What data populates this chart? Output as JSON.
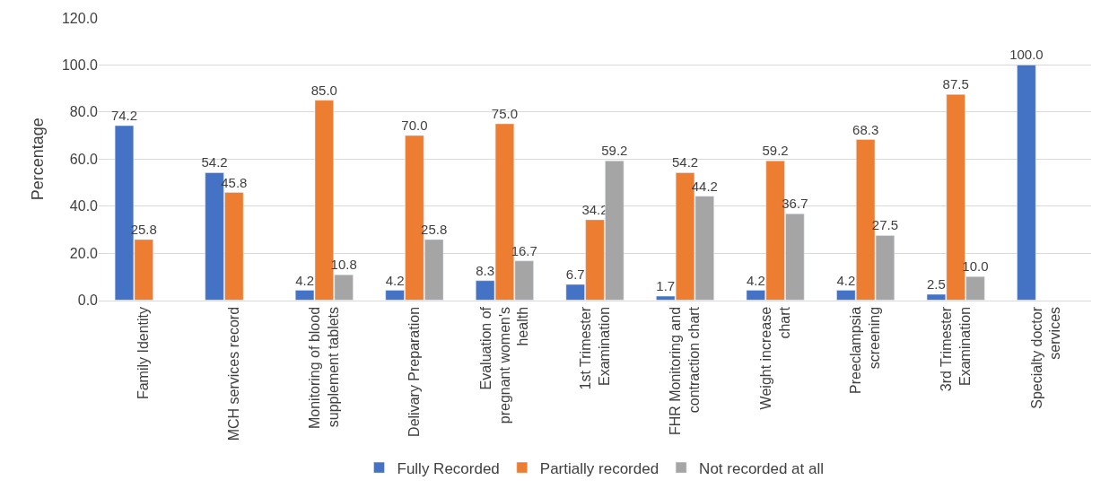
{
  "chart_data": {
    "type": "bar",
    "ylabel": "Percentage",
    "categories": [
      "Family Identity",
      "MCH services record",
      "Monitoring of blood supplement tablets",
      "Delivary Preparation",
      "Evaluation of pregnant women's health",
      "1st Trimester Examination",
      "FHR Monitoring and contraction chart",
      "Weight increase chart",
      "Preeclampsia screening",
      "3rd Trimester Examination",
      "Specialty doctor services"
    ],
    "series": [
      {
        "name": "Fully Recorded",
        "color": "#4472c4",
        "values": [
          74.2,
          54.2,
          4.2,
          4.2,
          8.3,
          6.7,
          1.7,
          4.2,
          4.2,
          2.5,
          100.0
        ],
        "value_labels": [
          "74.2",
          "54.2",
          "4.2",
          "4.2",
          "8.3",
          "6.7",
          "1.7",
          "4.2",
          "4.2",
          "2.5",
          "100.0"
        ]
      },
      {
        "name": "Partially recorded",
        "color": "#ed7d31",
        "values": [
          25.8,
          45.8,
          85.0,
          70.0,
          75.0,
          34.2,
          54.2,
          59.2,
          68.3,
          87.5,
          null
        ],
        "value_labels": [
          "25.8",
          "45.8",
          "85.0",
          "70.0",
          "75.0",
          "34.2",
          "54.2",
          "59.2",
          "68.3",
          "87.5",
          null
        ]
      },
      {
        "name": "Not recorded at all",
        "color": "#a5a5a5",
        "values": [
          null,
          null,
          10.8,
          25.8,
          16.7,
          59.2,
          44.2,
          36.7,
          27.5,
          10.0,
          null
        ],
        "value_labels": [
          null,
          null,
          "10.8",
          "25.8",
          "16.7",
          "59.2",
          "44.2",
          "36.7",
          "27.5",
          "10.0",
          null
        ]
      }
    ],
    "ylim": [
      0,
      120
    ],
    "yticks": [
      {
        "value": 0,
        "label": "0.0"
      },
      {
        "value": 20,
        "label": "20.0"
      },
      {
        "value": 40,
        "label": "40.0"
      },
      {
        "value": 60,
        "label": "60.0"
      },
      {
        "value": 80,
        "label": "80.0"
      },
      {
        "value": 100,
        "label": "100.0"
      },
      {
        "value": 120,
        "label": "120.0"
      }
    ],
    "grid": "y",
    "legend": "bottom"
  }
}
